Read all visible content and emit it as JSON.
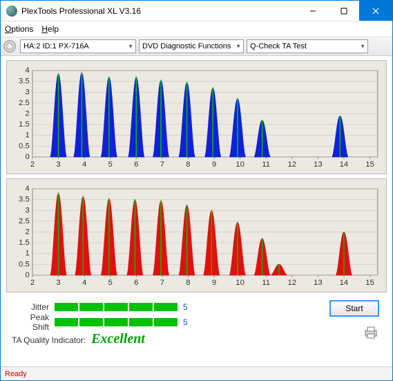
{
  "window": {
    "title": "PlexTools Professional XL V3.16"
  },
  "menu": {
    "options": "Options",
    "help": "Help"
  },
  "toolbar": {
    "drive": "HA:2 ID:1  PX-716A",
    "func": "DVD Diagnostic Functions",
    "test": "Q-Check TA Test"
  },
  "chart": {
    "background_color": "#ece9e2",
    "grid_color": "#bbbbbb",
    "axis_font": 11,
    "xlim": [
      2,
      15.3
    ],
    "xtick_step": 1,
    "ylim": [
      0,
      4
    ],
    "ytick_step": 0.5,
    "ylabels": [
      "0",
      "0.5",
      "1",
      "1.5",
      "2",
      "2.5",
      "3",
      "3.5",
      "4"
    ],
    "xlabels": [
      "2",
      "3",
      "4",
      "5",
      "6",
      "7",
      "8",
      "9",
      "10",
      "11",
      "12",
      "13",
      "14",
      "15"
    ],
    "peak_bar_width": 0.6,
    "green_line_color": "#00c000",
    "top": {
      "color": "#1020d8",
      "centers": [
        3.0,
        3.9,
        4.95,
        6.0,
        6.95,
        7.95,
        8.95,
        9.9,
        10.85,
        13.85
      ],
      "heights": [
        3.85,
        3.9,
        3.7,
        3.7,
        3.55,
        3.45,
        3.2,
        2.7,
        1.7,
        1.9
      ]
    },
    "bottom": {
      "color": "#e01010",
      "centers": [
        3.0,
        3.95,
        4.95,
        5.95,
        6.95,
        7.95,
        8.9,
        9.9,
        10.85,
        11.5,
        14.0
      ],
      "heights": [
        3.8,
        3.65,
        3.55,
        3.5,
        3.45,
        3.25,
        3.0,
        2.45,
        1.7,
        0.5,
        2.0
      ]
    }
  },
  "metrics": {
    "jitter_label": "Jitter",
    "jitter_bars": 5,
    "jitter_value": "5",
    "shift_label": "Peak Shift",
    "shift_bars": 5,
    "shift_value": "5",
    "bar_color": "#00c000",
    "quality_label": "TA Quality Indicator:",
    "quality_value": "Excellent",
    "quality_color": "#00a000",
    "start_btn": "Start"
  },
  "status": {
    "text": "Ready"
  }
}
